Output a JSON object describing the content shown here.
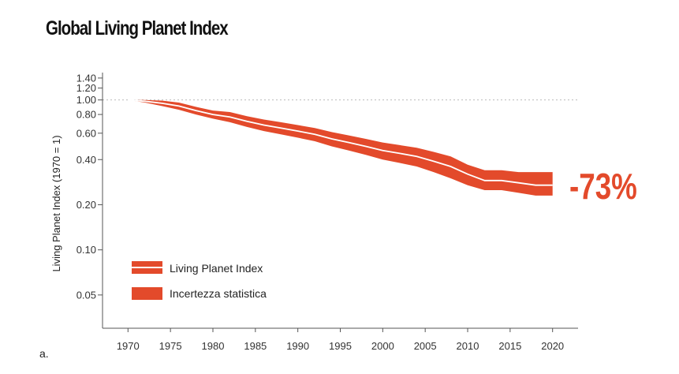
{
  "title": "Global Living Planet Index",
  "figure_label": "a.",
  "chart_data": {
    "type": "area",
    "title": "Global Living Planet Index",
    "ylabel": "Living Planet Index (1970 = 1)",
    "xlabel": "",
    "y_scale": "log",
    "xlim": [
      1967,
      2023
    ],
    "ylim": [
      0.03,
      1.45
    ],
    "x_ticks": [
      "1970",
      "1975",
      "1980",
      "1985",
      "1990",
      "1995",
      "2000",
      "2005",
      "2010",
      "2015",
      "2020"
    ],
    "y_ticks": [
      "1.40",
      "1.20",
      "1.00",
      "0.80",
      "0.60",
      "0.40",
      "0.20",
      "0.10",
      "0.05"
    ],
    "y_tick_values": [
      1.4,
      1.2,
      1.0,
      0.8,
      0.6,
      0.4,
      0.2,
      0.1,
      0.05
    ],
    "reference_line": 1.0,
    "grid": false,
    "legend_placement": "bottom-left",
    "series": [
      {
        "name": "Living Planet Index",
        "x": [
          1970,
          1972,
          1974,
          1976,
          1978,
          1980,
          1982,
          1984,
          1986,
          1988,
          1990,
          1992,
          1994,
          1996,
          1998,
          2000,
          2002,
          2004,
          2006,
          2008,
          2010,
          2012,
          2014,
          2016,
          2018,
          2020
        ],
        "values": [
          1.0,
          0.98,
          0.95,
          0.91,
          0.85,
          0.8,
          0.77,
          0.72,
          0.68,
          0.65,
          0.62,
          0.59,
          0.55,
          0.52,
          0.49,
          0.46,
          0.44,
          0.42,
          0.39,
          0.36,
          0.32,
          0.29,
          0.29,
          0.28,
          0.27,
          0.27
        ]
      },
      {
        "name": "Incertezza statistica",
        "x": [
          1970,
          1972,
          1974,
          1976,
          1978,
          1980,
          1982,
          1984,
          1986,
          1988,
          1990,
          1992,
          1994,
          1996,
          1998,
          2000,
          2002,
          2004,
          2006,
          2008,
          2010,
          2012,
          2014,
          2016,
          2018,
          2020
        ],
        "lower": [
          1.0,
          0.96,
          0.91,
          0.86,
          0.8,
          0.75,
          0.71,
          0.66,
          0.62,
          0.59,
          0.56,
          0.53,
          0.49,
          0.46,
          0.43,
          0.4,
          0.38,
          0.36,
          0.33,
          0.3,
          0.27,
          0.25,
          0.25,
          0.24,
          0.23,
          0.23
        ],
        "upper": [
          1.0,
          1.0,
          0.99,
          0.96,
          0.9,
          0.85,
          0.83,
          0.78,
          0.74,
          0.71,
          0.68,
          0.65,
          0.61,
          0.58,
          0.55,
          0.52,
          0.5,
          0.48,
          0.45,
          0.42,
          0.37,
          0.34,
          0.34,
          0.33,
          0.33,
          0.33
        ]
      }
    ],
    "annotation": "-73%"
  },
  "colors": {
    "band": "#e34a2b",
    "line": "#ffffff",
    "axis": "#555555",
    "reference": "#bbbbbb"
  },
  "icons": [
    "legend-line-swatch-icon",
    "legend-band-swatch-icon"
  ]
}
